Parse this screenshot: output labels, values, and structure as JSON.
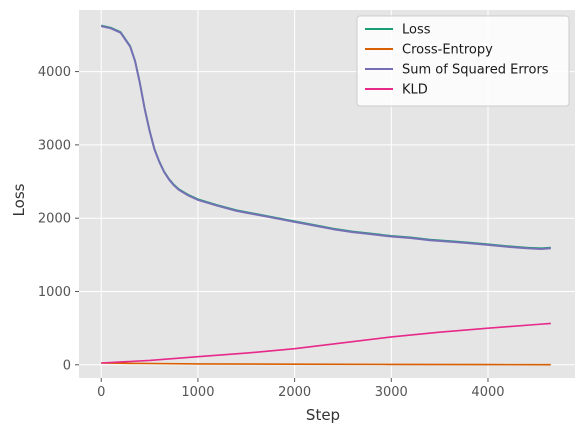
{
  "chart_data": {
    "type": "line",
    "title": "",
    "xlabel": "Step",
    "ylabel": "Loss",
    "xlim": [
      -230,
      4900
    ],
    "ylim": [
      -180,
      4840
    ],
    "xticks": [
      0,
      1000,
      2000,
      3000,
      4000
    ],
    "yticks": [
      0,
      1000,
      2000,
      3000,
      4000
    ],
    "grid": true,
    "legend_position": "top-right",
    "colors": {
      "background": "#e5e5e5",
      "grid": "#ffffff"
    },
    "series": [
      {
        "name": "Loss",
        "color": "#1b9e77",
        "x": [
          0,
          100,
          200,
          300,
          350,
          400,
          450,
          500,
          550,
          600,
          650,
          700,
          750,
          800,
          900,
          1000,
          1200,
          1400,
          1600,
          1800,
          2000,
          2200,
          2400,
          2600,
          2800,
          3000,
          3200,
          3400,
          3600,
          3800,
          4000,
          4200,
          4400,
          4550,
          4650
        ],
        "y": [
          4630,
          4600,
          4540,
          4350,
          4150,
          3850,
          3500,
          3200,
          2950,
          2780,
          2640,
          2540,
          2460,
          2400,
          2320,
          2260,
          2180,
          2110,
          2060,
          2010,
          1960,
          1910,
          1860,
          1820,
          1790,
          1760,
          1740,
          1710,
          1690,
          1670,
          1645,
          1620,
          1600,
          1590,
          1600
        ]
      },
      {
        "name": "Cross-Entropy",
        "color": "#d95f02",
        "x": [
          0,
          500,
          1000,
          2000,
          3000,
          4000,
          4650
        ],
        "y": [
          25,
          18,
          12,
          8,
          5,
          3,
          2
        ]
      },
      {
        "name": "Sum of Squared Errors",
        "color": "#7570b3",
        "x": [
          0,
          100,
          200,
          300,
          350,
          400,
          450,
          500,
          550,
          600,
          650,
          700,
          750,
          800,
          900,
          1000,
          1200,
          1400,
          1600,
          1800,
          2000,
          2200,
          2400,
          2600,
          2800,
          3000,
          3200,
          3400,
          3600,
          3800,
          4000,
          4200,
          4400,
          4550,
          4650
        ],
        "y": [
          4620,
          4590,
          4530,
          4340,
          4140,
          3840,
          3490,
          3190,
          2940,
          2770,
          2630,
          2530,
          2450,
          2390,
          2310,
          2250,
          2170,
          2100,
          2050,
          2000,
          1950,
          1900,
          1850,
          1810,
          1780,
          1750,
          1730,
          1700,
          1680,
          1660,
          1635,
          1610,
          1590,
          1580,
          1590
        ]
      },
      {
        "name": "KLD",
        "color": "#e7298a",
        "x": [
          0,
          500,
          1000,
          1500,
          2000,
          2500,
          3000,
          3500,
          4000,
          4500,
          4650
        ],
        "y": [
          25,
          60,
          110,
          160,
          220,
          300,
          380,
          445,
          500,
          550,
          565
        ]
      }
    ]
  }
}
